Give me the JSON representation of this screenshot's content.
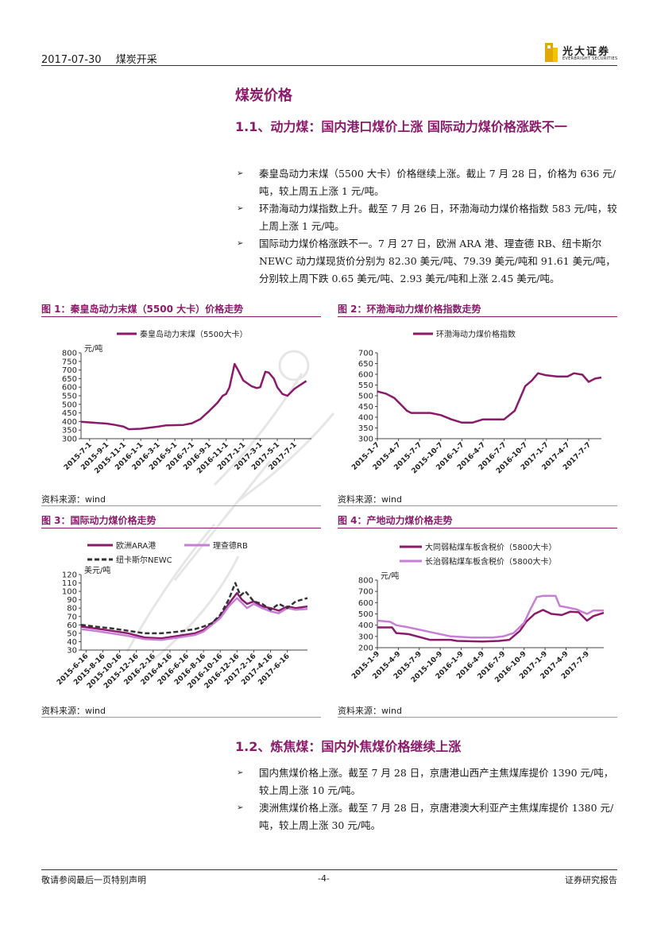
{
  "header": {
    "date": "2017-07-30",
    "category": "煤炭开采",
    "logo_cn": "光大证券",
    "logo_en": "EVERBRIGHT SECURITIES"
  },
  "section": {
    "title": "煤炭价格",
    "sub1": "1.1、动力煤：国内港口煤价上涨 国际动力煤价格涨跌不一",
    "bullets1": [
      "秦皇岛动力末煤（5500 大卡）价格继续上涨。截止 7 月 28 日，价格为 636 元/吨，较上周五上涨 1 元/吨。",
      "环渤海动力煤指数上升。截至 7 月 26 日，环渤海动力煤价格指数 583 元/吨，较上周上涨 1 元/吨。",
      "国际动力煤价格涨跌不一。7 月 27 日，欧洲 ARA 港、理查德 RB、纽卡斯尔 NEWC 动力煤现货价分别为 82.30 美元/吨、79.39 美元/吨和 91.61 美元/吨，分别较上周下跌 0.65 美元/吨、2.93 美元/吨和上涨 2.45 美元/吨。"
    ],
    "sub2": "1.2、炼焦煤：国内外焦煤价格继续上涨",
    "bullets2": [
      "国内焦煤价格上涨。截至 7 月 28 日，京唐港山西产主焦煤库提价 1390 元/吨，较上周上涨 10 元/吨。",
      "澳洲焦煤价格上涨。截至 7 月 28 日，京唐港澳大利亚产主焦煤库提价 1380 元/吨，较上周上涨 30 元/吨。"
    ]
  },
  "source_text": "资料来源：wind",
  "footer": {
    "left": "敬请参阅最后一页特别声明",
    "page": "-4-",
    "right": "证券研究报告"
  },
  "colors": {
    "accent": "#8b1a6b",
    "light": "#c77fd6",
    "dark": "#333333"
  },
  "chart_data": [
    {
      "type": "line",
      "title": "图 1：秦皇岛动力末煤（5500 大卡）价格走势",
      "ylabel": "元/吨",
      "ylim": [
        300,
        800
      ],
      "yticks": [
        300,
        350,
        400,
        450,
        500,
        550,
        600,
        650,
        700,
        750,
        800
      ],
      "xticks": [
        "2015-7-1",
        "2015-9-1",
        "2015-11-1",
        "2016-1-1",
        "2016-3-1",
        "2016-5-1",
        "2016-7-1",
        "2016-9-1",
        "2016-11-1",
        "2017-1-1",
        "2017-3-1",
        "2017-5-1",
        "2017-7-1"
      ],
      "xdomain": [
        -0.5,
        13
      ],
      "series": [
        {
          "name": "秦皇岛动力末煤（5500大卡）",
          "color": "#8b1a6b",
          "x": [
            -0.5,
            0,
            1,
            1.5,
            2,
            2.3,
            3,
            4,
            4.5,
            5.5,
            6,
            6.5,
            7,
            7.5,
            7.8,
            8,
            8.2,
            8.5,
            8.7,
            9,
            9.5,
            9.8,
            10,
            10.3,
            10.5,
            10.8,
            11,
            11.3,
            11.6,
            12,
            12.3,
            12.7
          ],
          "y": [
            398,
            395,
            388,
            380,
            370,
            355,
            358,
            370,
            378,
            380,
            390,
            415,
            460,
            510,
            550,
            560,
            600,
            735,
            700,
            640,
            605,
            595,
            600,
            690,
            685,
            650,
            600,
            560,
            550,
            590,
            610,
            636
          ]
        }
      ]
    },
    {
      "type": "line",
      "title": "图 2：环渤海动力煤价格指数走势",
      "ylim": [
        300,
        700
      ],
      "yticks": [
        300,
        350,
        400,
        450,
        500,
        550,
        600,
        650,
        700
      ],
      "xticks": [
        "2015-1-7",
        "2015-4-7",
        "2015-7-7",
        "2015-10-7",
        "2016-1-7",
        "2016-4-7",
        "2016-7-7",
        "2016-10-7",
        "2017-1-7",
        "2017-4-7",
        "2017-7-7"
      ],
      "xdomain": [
        0,
        10.6
      ],
      "series": [
        {
          "name": "环渤海动力煤价格指数",
          "color": "#8b1a6b",
          "x": [
            0,
            0.4,
            0.8,
            1.1,
            1.4,
            1.6,
            1.9,
            2.5,
            3,
            3.5,
            4,
            4.5,
            5,
            5.5,
            6,
            6.5,
            7,
            7.3,
            7.6,
            8,
            8.5,
            9,
            9.3,
            9.7,
            10,
            10.3,
            10.6
          ],
          "y": [
            520,
            510,
            490,
            460,
            430,
            420,
            420,
            420,
            410,
            390,
            375,
            375,
            390,
            390,
            390,
            430,
            545,
            570,
            605,
            595,
            590,
            590,
            605,
            598,
            565,
            580,
            585
          ]
        }
      ]
    },
    {
      "type": "line",
      "title": "图 3：国际动力煤价格走势",
      "ylabel": "美元/吨",
      "ylim": [
        30,
        120
      ],
      "yticks": [
        30,
        40,
        50,
        60,
        70,
        80,
        90,
        100,
        110,
        120
      ],
      "xticks": [
        "2015-6-16",
        "2015-8-16",
        "2015-10-16",
        "2015-12-16",
        "2016-2-16",
        "2016-4-16",
        "2016-6-16",
        "2016-8-16",
        "2016-10-16",
        "2016-12-16",
        "2017-2-16",
        "2017-4-16",
        "2017-6-16"
      ],
      "xdomain": [
        -0.3,
        13.2
      ],
      "series": [
        {
          "name": "欧洲ARA港",
          "color": "#8b1a6b",
          "dash": "",
          "x": [
            -0.3,
            0.5,
            1.5,
            2.5,
            3.5,
            4.5,
            5.5,
            6.5,
            7,
            7.5,
            8,
            8.5,
            9,
            9.3,
            9.6,
            10,
            10.5,
            11,
            11.5,
            12,
            12.5,
            13.2
          ],
          "y": [
            58,
            56,
            53,
            50,
            45,
            44,
            47,
            50,
            54,
            62,
            70,
            85,
            98,
            90,
            85,
            88,
            82,
            80,
            77,
            82,
            80,
            82
          ]
        },
        {
          "name": "理查德RB",
          "color": "#c77fd6",
          "dash": "",
          "x": [
            -0.3,
            0.5,
            1.5,
            2.5,
            3.5,
            4.5,
            5.5,
            6.5,
            7,
            7.5,
            8,
            8.5,
            9,
            9.3,
            9.6,
            10,
            10.5,
            11,
            11.5,
            12,
            12.5,
            13.2
          ],
          "y": [
            55,
            53,
            50,
            47,
            43,
            42,
            45,
            48,
            52,
            60,
            68,
            82,
            92,
            86,
            80,
            85,
            80,
            76,
            74,
            80,
            78,
            79
          ]
        },
        {
          "name": "纽卡斯尔NEWC",
          "color": "#333333",
          "dash": "6,3",
          "x": [
            -0.3,
            0.5,
            1.5,
            2.5,
            3.5,
            4.5,
            5.5,
            6.5,
            7,
            7.5,
            8,
            8.5,
            8.9,
            9.2,
            9.5,
            10,
            10.5,
            11,
            11.5,
            12,
            12.5,
            13.2
          ],
          "y": [
            60,
            58,
            56,
            53,
            50,
            50,
            52,
            55,
            58,
            62,
            72,
            90,
            110,
            95,
            100,
            88,
            85,
            78,
            85,
            80,
            88,
            92
          ]
        }
      ]
    },
    {
      "type": "line",
      "title": "图 4：产地动力煤价格走势",
      "ylabel": "元/吨",
      "ylim": [
        200,
        800
      ],
      "yticks": [
        200,
        300,
        400,
        500,
        600,
        700,
        800
      ],
      "xticks": [
        "2015-1-9",
        "2015-4-9",
        "2015-7-9",
        "2015-10-9",
        "2016-1-9",
        "2016-4-9",
        "2016-7-9",
        "2016-10-9",
        "2017-1-9",
        "2017-4-9",
        "2017-7-9"
      ],
      "xdomain": [
        0,
        10.8
      ],
      "series": [
        {
          "name": "大同弱粘煤车板含税价（5800大卡）",
          "color": "#8b1a6b",
          "dash": "",
          "x": [
            0,
            0.7,
            0.9,
            1.5,
            2.5,
            3.5,
            3.8,
            5,
            5.8,
            6.3,
            6.8,
            7.1,
            7.5,
            7.9,
            8.3,
            8.8,
            9.2,
            9.6,
            10,
            10.3,
            10.8
          ],
          "y": [
            380,
            380,
            330,
            320,
            270,
            270,
            260,
            255,
            260,
            270,
            350,
            430,
            500,
            535,
            500,
            490,
            520,
            515,
            440,
            480,
            510
          ]
        },
        {
          "name": "长治弱粘煤车板含税价（5800大卡）",
          "color": "#c77fd6",
          "dash": "",
          "x": [
            0,
            0.6,
            0.9,
            1.5,
            2.5,
            3.5,
            4.5,
            5.5,
            6,
            6.5,
            7,
            7.3,
            7.6,
            7.9,
            8.5,
            8.7,
            9,
            9.5,
            10,
            10.3,
            10.8
          ],
          "y": [
            440,
            430,
            400,
            380,
            340,
            300,
            290,
            290,
            300,
            330,
            420,
            540,
            650,
            660,
            660,
            570,
            560,
            540,
            500,
            530,
            530
          ]
        }
      ]
    }
  ]
}
